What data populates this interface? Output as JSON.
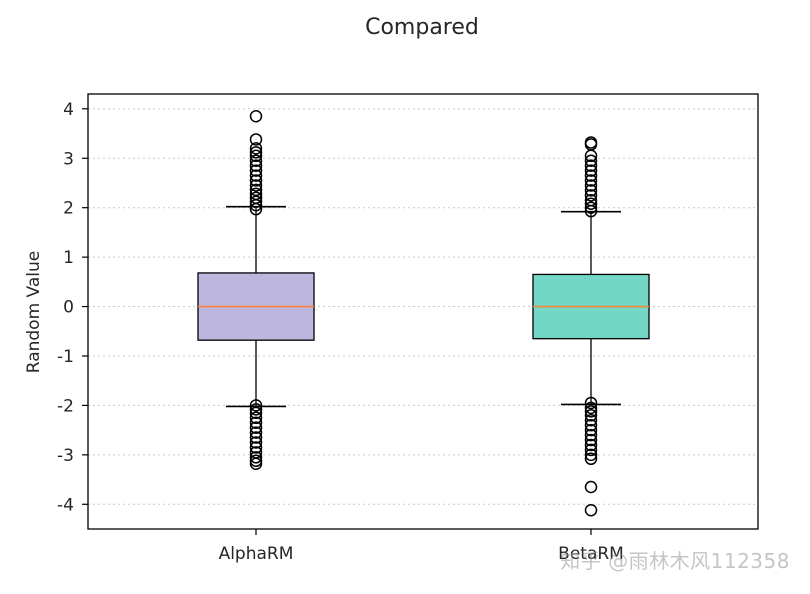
{
  "chart_data": {
    "type": "boxplot",
    "title": "Compared",
    "xlabel": "",
    "ylabel": "Random Value",
    "ylim": [
      -4.5,
      4.3
    ],
    "yticks": [
      4,
      3,
      2,
      1,
      0,
      -1,
      -2,
      -3,
      -4
    ],
    "ytick_labels": [
      "4",
      "3",
      "2",
      "1",
      "0",
      "-1",
      "-2",
      "-3",
      "-4"
    ],
    "grid": "horizontal dotted",
    "categories": [
      "AlphaRM",
      "BetaRM"
    ],
    "boxes": [
      {
        "label": "AlphaRM",
        "color": "#bdb6df",
        "q1": -0.68,
        "median": 0.0,
        "q3": 0.68,
        "whisker_low": -2.02,
        "whisker_high": 2.02,
        "fliers_high": [
          1.97,
          2.05,
          2.12,
          2.2,
          2.28,
          2.36,
          2.45,
          2.55,
          2.65,
          2.75,
          2.85,
          2.95,
          3.05,
          3.12,
          3.2,
          3.38,
          3.85
        ],
        "fliers_low": [
          -2.0,
          -2.08,
          -2.15,
          -2.25,
          -2.35,
          -2.45,
          -2.55,
          -2.65,
          -2.75,
          -2.85,
          -2.95,
          -3.05,
          -3.12,
          -3.18
        ]
      },
      {
        "label": "BetaRM",
        "color": "#74d6c5",
        "q1": -0.65,
        "median": 0.0,
        "q3": 0.65,
        "whisker_low": -1.98,
        "whisker_high": 1.92,
        "fliers_high": [
          1.93,
          2.0,
          2.08,
          2.15,
          2.25,
          2.35,
          2.45,
          2.55,
          2.65,
          2.75,
          2.85,
          2.95,
          3.05,
          3.28,
          3.32
        ],
        "fliers_low": [
          -1.95,
          -2.05,
          -2.12,
          -2.2,
          -2.3,
          -2.4,
          -2.5,
          -2.6,
          -2.7,
          -2.8,
          -2.9,
          -3.0,
          -3.08,
          -3.65,
          -4.12
        ]
      }
    ],
    "median_color": "#f5873a"
  },
  "watermark": "知乎 @雨林木风112358"
}
